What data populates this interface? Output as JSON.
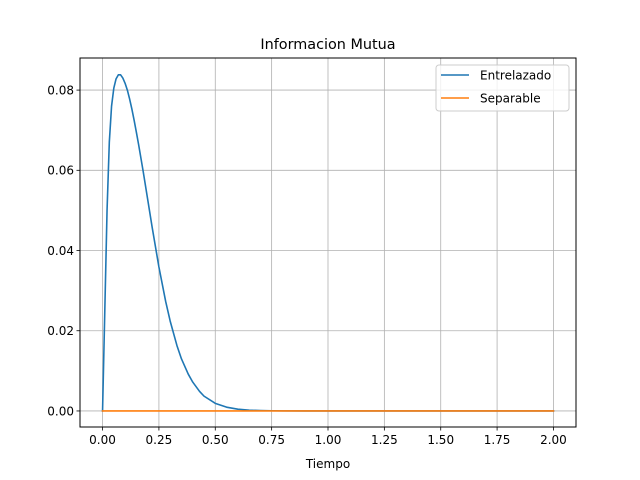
{
  "chart_data": {
    "type": "line",
    "title": "Informacion Mutua",
    "xlabel": "Tiempo",
    "ylabel": "",
    "xlim": [
      -0.1,
      2.1
    ],
    "ylim": [
      -0.004,
      0.088
    ],
    "xticks": [
      0.0,
      0.25,
      0.5,
      0.75,
      1.0,
      1.25,
      1.5,
      1.75,
      2.0
    ],
    "xtick_labels": [
      "0.00",
      "0.25",
      "0.50",
      "0.75",
      "1.00",
      "1.25",
      "1.50",
      "1.75",
      "2.00"
    ],
    "yticks": [
      0.0,
      0.02,
      0.04,
      0.06,
      0.08
    ],
    "ytick_labels": [
      "0.00",
      "0.02",
      "0.04",
      "0.06",
      "0.08"
    ],
    "grid": true,
    "legend_position": "top-right",
    "series": [
      {
        "name": "Entrelazado",
        "color": "#1f77b4",
        "x": [
          0.0,
          0.01,
          0.02,
          0.03,
          0.04,
          0.05,
          0.06,
          0.07,
          0.08,
          0.09,
          0.1,
          0.11,
          0.12,
          0.13,
          0.14,
          0.15,
          0.16,
          0.18,
          0.2,
          0.22,
          0.25,
          0.28,
          0.3,
          0.33,
          0.35,
          0.38,
          0.4,
          0.43,
          0.45,
          0.5,
          0.55,
          0.6,
          0.65,
          0.7,
          0.75,
          0.8,
          0.9,
          1.0,
          1.25,
          1.5,
          1.75,
          2.0
        ],
        "y": [
          0.0,
          0.025,
          0.05,
          0.067,
          0.076,
          0.0805,
          0.0828,
          0.0838,
          0.0838,
          0.083,
          0.0817,
          0.08,
          0.0778,
          0.0753,
          0.0725,
          0.0695,
          0.0664,
          0.0598,
          0.0528,
          0.0458,
          0.0359,
          0.0273,
          0.0224,
          0.0163,
          0.013,
          0.0092,
          0.0072,
          0.0049,
          0.0037,
          0.0019,
          0.00095,
          0.00045,
          0.0002,
          0.0001,
          5e-05,
          2e-05,
          0.0,
          0.0,
          0.0,
          0.0,
          0.0,
          0.0
        ]
      },
      {
        "name": "Separable",
        "color": "#ff7f0e",
        "x": [
          0.0,
          0.5,
          1.0,
          1.5,
          2.0
        ],
        "y": [
          0.0,
          0.0,
          0.0,
          0.0,
          0.0
        ]
      }
    ]
  }
}
